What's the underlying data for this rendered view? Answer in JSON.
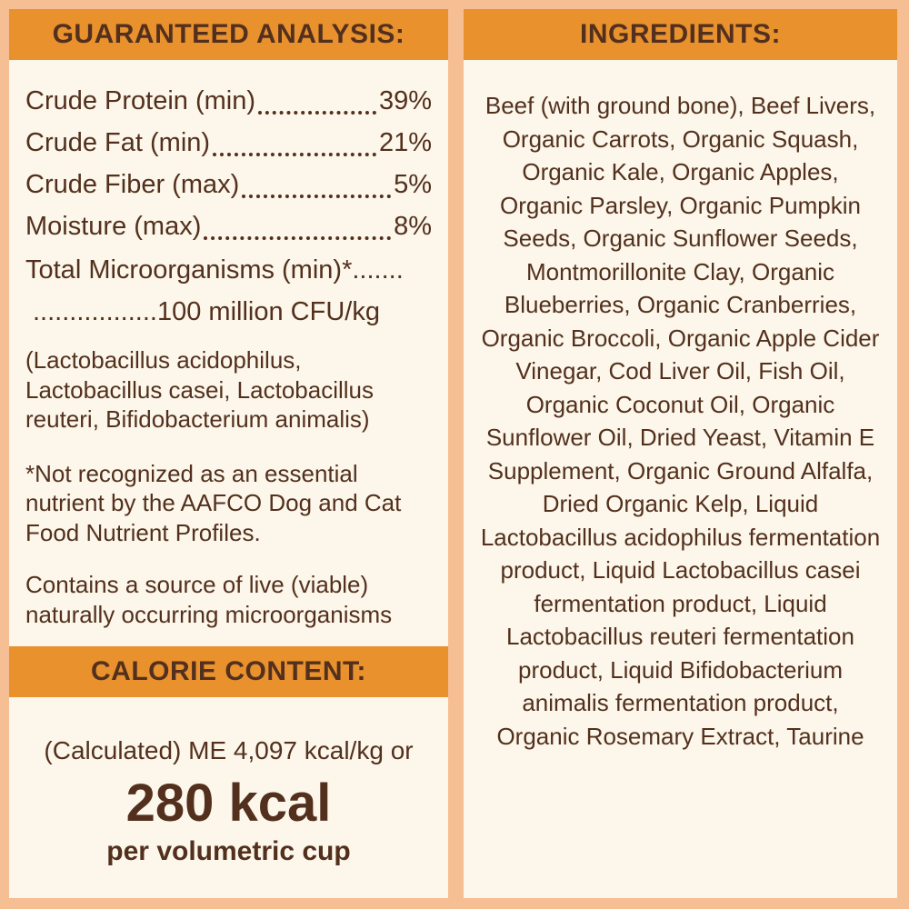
{
  "colors": {
    "background": "#F6BE93",
    "panel": "#FCF7EA",
    "header_bar": "#E8912D",
    "text": "#53301E"
  },
  "guaranteed_analysis": {
    "title": "GUARANTEED ANALYSIS:",
    "rows": [
      {
        "label": "Crude Protein (min)",
        "value": "39%"
      },
      {
        "label": "Crude Fat (min)",
        "value": "21%"
      },
      {
        "label": "Crude Fiber (max)",
        "value": "5%"
      },
      {
        "label": "Moisture (max)",
        "value": "8%"
      }
    ],
    "microorganisms_line1": "Total Microorganisms (min)*.......",
    "microorganisms_line2": ".................100 million CFU/kg",
    "species_note": "(Lactobacillus acidophilus, Lactobacillus casei, Lactobacillus reuteri, Bifidobacterium animalis)",
    "aafco_note": "*Not recognized as an essential nutrient by the AAFCO Dog and Cat Food Nutrient Profiles.",
    "live_note": "Contains a source of live (viable) naturally occurring microorganisms"
  },
  "calorie_content": {
    "title": "CALORIE CONTENT:",
    "calculated_line": "(Calculated) ME 4,097 kcal/kg or",
    "kcal_value": "280 kcal",
    "per_cup_line": "per volumetric cup"
  },
  "ingredients": {
    "title": "INGREDIENTS:",
    "text": "Beef (with ground bone), Beef Livers, Organic Carrots, Organic Squash, Organic Kale, Organic Apples, Organic Parsley, Organic Pumpkin Seeds, Organic Sunflower Seeds, Montmorillonite Clay, Organic Blueberries, Organic Cranberries, Organic Broccoli, Organic Apple Cider Vinegar, Cod Liver Oil, Fish Oil, Organic Coconut Oil, Organic Sunflower Oil, Dried Yeast, Vitamin E Supplement, Organic Ground Alfalfa, Dried Organic Kelp, Liquid Lactobacillus acidophilus fermentation product, Liquid Lactobacillus casei fermentation product, Liquid Lactobacillus reuteri fermentation product, Liquid Bifidobacterium animalis fermentation product, Organic Rosemary Extract, Taurine"
  }
}
